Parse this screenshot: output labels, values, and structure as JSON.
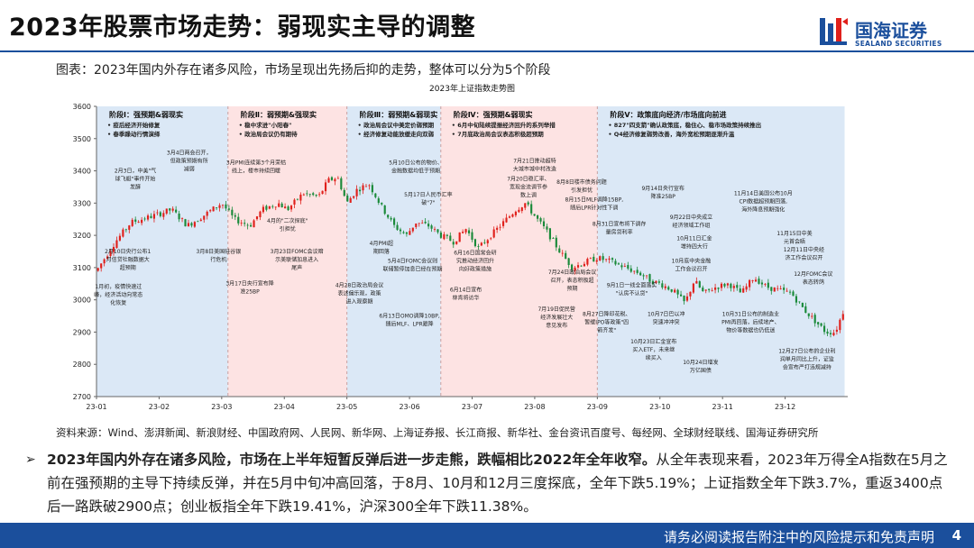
{
  "header": {
    "title": "2023年股票市场走势：弱现实主导的调整",
    "logo_cn": "国海证券",
    "logo_en": "SEALAND SECURITIES"
  },
  "figure": {
    "caption": "图表：2023年国内外存在诸多风险，市场呈现出先扬后抑的走势，整体可以分为5个阶段"
  },
  "chart_data": {
    "type": "candlestick",
    "title": "2023年上证指数走势图",
    "ylim": [
      2700,
      3600
    ],
    "yticks": [
      2700,
      2800,
      2900,
      3000,
      3100,
      3200,
      3300,
      3400,
      3500,
      3600
    ],
    "xticks": [
      "23-01",
      "23-02",
      "23-03",
      "23-04",
      "23-05",
      "23-06",
      "23-07",
      "23-08",
      "23-09",
      "23-10",
      "23-11",
      "23-12"
    ],
    "colors": {
      "up": "#e0201b",
      "down": "#1a8a3a",
      "phase_blue": "#dbe8f6",
      "phase_pink": "#fde3e3"
    },
    "phases": [
      {
        "label": "阶段Ⅰ：强预期&弱现实",
        "start_month": 0,
        "end_month": 2.1,
        "tone": "blue",
        "notes": [
          "• 疫后经济开始修复",
          "• 春季躁动行情演绎"
        ]
      },
      {
        "label": "阶段Ⅱ：弱预期&强现实",
        "start_month": 2.1,
        "end_month": 4.0,
        "tone": "pink",
        "notes": [
          "• 稳中求进\"小阳春\"",
          "• 政治局会议仍有期待"
        ]
      },
      {
        "label": "阶段Ⅲ：弱预期&弱现实",
        "start_month": 4.0,
        "end_month": 5.5,
        "tone": "blue",
        "notes": [
          "• 政治局会议中美定价弱预期",
          "• 经济修复动能放缓走向双弱"
        ]
      },
      {
        "label": "阶段Ⅳ：强预期&弱现实",
        "start_month": 5.5,
        "end_month": 8.0,
        "tone": "pink",
        "notes": [
          "• 6月中旬陆续提振经济回升的系列举措",
          "• 7月底政治局会议表态积极超预期"
        ]
      },
      {
        "label": "阶段Ⅴ：政策底向经济/市场底向前进",
        "start_month": 8.0,
        "end_month": 11.95,
        "tone": "blue",
        "notes": [
          "• 827\"四支箭\"确认政策底，稳住心、稳市场政策持续推出",
          "• Q4经济修复弱势改善，海外宽松预期逐渐升温"
        ]
      }
    ],
    "ohlc_control_points": [
      {
        "t": 0.0,
        "v": 3090
      },
      {
        "t": 0.3,
        "v": 3180
      },
      {
        "t": 0.55,
        "v": 3240
      },
      {
        "t": 0.9,
        "v": 3260
      },
      {
        "t": 1.2,
        "v": 3280
      },
      {
        "t": 1.45,
        "v": 3230
      },
      {
        "t": 1.7,
        "v": 3260
      },
      {
        "t": 2.0,
        "v": 3300
      },
      {
        "t": 2.2,
        "v": 3250
      },
      {
        "t": 2.45,
        "v": 3230
      },
      {
        "t": 2.65,
        "v": 3280
      },
      {
        "t": 2.9,
        "v": 3300
      },
      {
        "t": 3.05,
        "v": 3280
      },
      {
        "t": 3.3,
        "v": 3330
      },
      {
        "t": 3.55,
        "v": 3320
      },
      {
        "t": 3.7,
        "v": 3370
      },
      {
        "t": 3.85,
        "v": 3380
      },
      {
        "t": 4.0,
        "v": 3300
      },
      {
        "t": 4.15,
        "v": 3340
      },
      {
        "t": 4.35,
        "v": 3360
      },
      {
        "t": 4.55,
        "v": 3290
      },
      {
        "t": 4.75,
        "v": 3230
      },
      {
        "t": 4.95,
        "v": 3200
      },
      {
        "t": 5.1,
        "v": 3240
      },
      {
        "t": 5.3,
        "v": 3230
      },
      {
        "t": 5.5,
        "v": 3200
      },
      {
        "t": 5.7,
        "v": 3180
      },
      {
        "t": 5.9,
        "v": 3220
      },
      {
        "t": 6.1,
        "v": 3160
      },
      {
        "t": 6.3,
        "v": 3200
      },
      {
        "t": 6.5,
        "v": 3240
      },
      {
        "t": 6.7,
        "v": 3280
      },
      {
        "t": 6.85,
        "v": 3300
      },
      {
        "t": 7.0,
        "v": 3260
      },
      {
        "t": 7.2,
        "v": 3210
      },
      {
        "t": 7.4,
        "v": 3150
      },
      {
        "t": 7.6,
        "v": 3100
      },
      {
        "t": 7.85,
        "v": 3120
      },
      {
        "t": 8.0,
        "v": 3130
      },
      {
        "t": 8.2,
        "v": 3120
      },
      {
        "t": 8.45,
        "v": 3100
      },
      {
        "t": 8.7,
        "v": 3080
      },
      {
        "t": 8.85,
        "v": 3060
      },
      {
        "t": 9.0,
        "v": 3050
      },
      {
        "t": 9.2,
        "v": 3030
      },
      {
        "t": 9.4,
        "v": 2990
      },
      {
        "t": 9.55,
        "v": 3060
      },
      {
        "t": 9.7,
        "v": 3020
      },
      {
        "t": 9.9,
        "v": 3040
      },
      {
        "t": 10.1,
        "v": 3050
      },
      {
        "t": 10.3,
        "v": 3020
      },
      {
        "t": 10.5,
        "v": 3070
      },
      {
        "t": 10.7,
        "v": 3040
      },
      {
        "t": 10.9,
        "v": 3030
      },
      {
        "t": 11.1,
        "v": 3020
      },
      {
        "t": 11.3,
        "v": 2970
      },
      {
        "t": 11.5,
        "v": 2930
      },
      {
        "t": 11.65,
        "v": 2900
      },
      {
        "t": 11.8,
        "v": 2900
      },
      {
        "t": 11.95,
        "v": 2975
      }
    ],
    "annotations": [
      {
        "t": 0.62,
        "v": 3395,
        "lines": [
          "2月3日，中美\"气",
          "球飞艇\"事件开始",
          "发酵"
        ]
      },
      {
        "t": 1.48,
        "v": 3450,
        "lines": [
          "3月4日两会召开，",
          "但政策预期有所",
          "减弱"
        ]
      },
      {
        "t": 0.5,
        "v": 3145,
        "lines": [
          "2月10日央行公布1",
          "月信贷社融数据大",
          "超预期"
        ]
      },
      {
        "t": 0.35,
        "v": 3035,
        "lines": [
          "1月初，疫情快速过",
          "峰，经济活动向常态",
          "化恢复"
        ]
      },
      {
        "t": 1.95,
        "v": 3145,
        "lines": [
          "3月8日美国硅谷银",
          "行危机"
        ]
      },
      {
        "t": 2.45,
        "v": 3045,
        "lines": [
          "3月17日央行宣布降",
          "准25BP"
        ]
      },
      {
        "t": 2.55,
        "v": 3420,
        "lines": [
          "3月PMI连续第3个月荣枯",
          "线上，楼市持续回暖"
        ]
      },
      {
        "t": 3.05,
        "v": 3240,
        "lines": [
          "4月的\"二次探底\"",
          "引担忧"
        ]
      },
      {
        "t": 3.2,
        "v": 3145,
        "lines": [
          "3月23日FOMC会议暗",
          "示美联储加息进入",
          "尾声"
        ]
      },
      {
        "t": 4.2,
        "v": 3040,
        "lines": [
          "4月28日政治局会议",
          "表述偏乐观，政策",
          "进入观察期"
        ]
      },
      {
        "t": 4.55,
        "v": 3170,
        "lines": [
          "4月PMI超",
          "期回落"
        ]
      },
      {
        "t": 5.1,
        "v": 3420,
        "lines": [
          "5月10日公布的物价、",
          "金融数据均低于预期"
        ]
      },
      {
        "t": 5.3,
        "v": 3320,
        "lines": [
          "5月17日人民币汇率",
          "破\"7\""
        ]
      },
      {
        "t": 5.05,
        "v": 3115,
        "lines": [
          "5月4日FOMC会议则",
          "联储暂停加息已经在预期"
        ]
      },
      {
        "t": 6.05,
        "v": 3140,
        "lines": [
          "6月16日国常会研",
          "究推动经济回升",
          "向好政策措施"
        ]
      },
      {
        "t": 5.9,
        "v": 3025,
        "lines": [
          "6月14日宣布",
          "林肯将访华"
        ]
      },
      {
        "t": 5.0,
        "v": 2945,
        "lines": [
          "6月13日OMO调降10BP,",
          "随后MLF、LPR跟降"
        ]
      },
      {
        "t": 6.9,
        "v": 3370,
        "lines": [
          "7月20日稳汇率、",
          "宽现金流调节参",
          "数上调"
        ]
      },
      {
        "t": 7.0,
        "v": 3425,
        "lines": [
          "7月21日推动超特",
          "大城市城中村改造"
        ]
      },
      {
        "t": 7.75,
        "v": 3360,
        "lines": [
          "8月8日楼市债务问题",
          "引发担忧"
        ]
      },
      {
        "t": 7.95,
        "v": 3305,
        "lines": [
          "8月15日MLF调降15BP,",
          "随后LPR针对性下调"
        ]
      },
      {
        "t": 8.35,
        "v": 3230,
        "lines": [
          "8月31日宣布将下调存",
          "量房贷利率"
        ]
      },
      {
        "t": 7.35,
        "v": 2965,
        "lines": [
          "7月19日促民营",
          "经济发展壮大",
          "意见发布"
        ]
      },
      {
        "t": 7.6,
        "v": 3080,
        "lines": [
          "7月24日政治局会议",
          "召开，表态积极超",
          "预期"
        ]
      },
      {
        "t": 8.55,
        "v": 3040,
        "lines": [
          "9月1日一线全面落实",
          "\"认房不认贷\""
        ]
      },
      {
        "t": 8.15,
        "v": 2950,
        "lines": [
          "8月27日降印花税、",
          "暂缓IPO等政策\"四",
          "箭齐发\""
        ]
      },
      {
        "t": 9.05,
        "v": 3340,
        "lines": [
          "9月14日央行宣布",
          "降准25BP"
        ]
      },
      {
        "t": 9.5,
        "v": 3250,
        "lines": [
          "9月22日中央成立",
          "经济领域工作组"
        ]
      },
      {
        "t": 9.55,
        "v": 3185,
        "lines": [
          "10月11日汇金",
          "增持四大行"
        ]
      },
      {
        "t": 9.1,
        "v": 2950,
        "lines": [
          "10月7日巴以冲",
          "突速冲冲突"
        ]
      },
      {
        "t": 9.5,
        "v": 3115,
        "lines": [
          "10月底中央金融",
          "工作会议召开"
        ]
      },
      {
        "t": 8.9,
        "v": 2865,
        "lines": [
          "10月23日汇金宣布",
          "买入ETF，未来继",
          "续买入"
        ]
      },
      {
        "t": 9.65,
        "v": 2800,
        "lines": [
          "10月24日增发",
          "万亿国债"
        ]
      },
      {
        "t": 10.65,
        "v": 3325,
        "lines": [
          "11月14日美国公布10月",
          "CPI数据超预期回落,",
          "海外降息预期强化"
        ]
      },
      {
        "t": 10.45,
        "v": 2950,
        "lines": [
          "10月31日公布的制造业",
          "PMI再回落，后续地产、",
          "物价等数据也仍低迷"
        ]
      },
      {
        "t": 11.15,
        "v": 3200,
        "lines": [
          "11月15日中美",
          "元首会晤"
        ]
      },
      {
        "t": 11.3,
        "v": 3150,
        "lines": [
          "12月11日中央经",
          "济工作会议召开"
        ]
      },
      {
        "t": 11.45,
        "v": 3075,
        "lines": [
          "12月FOMC会议",
          "表态转鸽"
        ]
      },
      {
        "t": 11.35,
        "v": 2835,
        "lines": [
          "12月27日公布的企业利",
          "润单月同比上升，证监",
          "会宣布严打违规减持"
        ]
      }
    ]
  },
  "source": "资料来源：Wind、澎湃新闻、新浪财经、中国政府网、人民网、新华网、上海证券报、长江商报、新华社、金台资讯百度号、每经网、全球财经联线、国海证券研究所",
  "summary": {
    "bold": "2023年国内外存在诸多风险，市场在上半年短暂反弹后进一步走熊，跌幅相比2022年全年收窄。",
    "rest": "从全年表现来看，2023年万得全A指数在5月之前在强预期的主导下持续反弹，并在5月中旬冲高回落，于8月、10月和12月三度探底，全年下跌5.19%；上证指数全年下跌3.7%，重返3400点后一路跌破2900点；创业板指全年下跌19.41%，沪深300全年下跌11.38%。"
  },
  "footer": {
    "disclaimer": "请务必阅读报告附注中的风险提示和免责声明",
    "page": "4"
  }
}
